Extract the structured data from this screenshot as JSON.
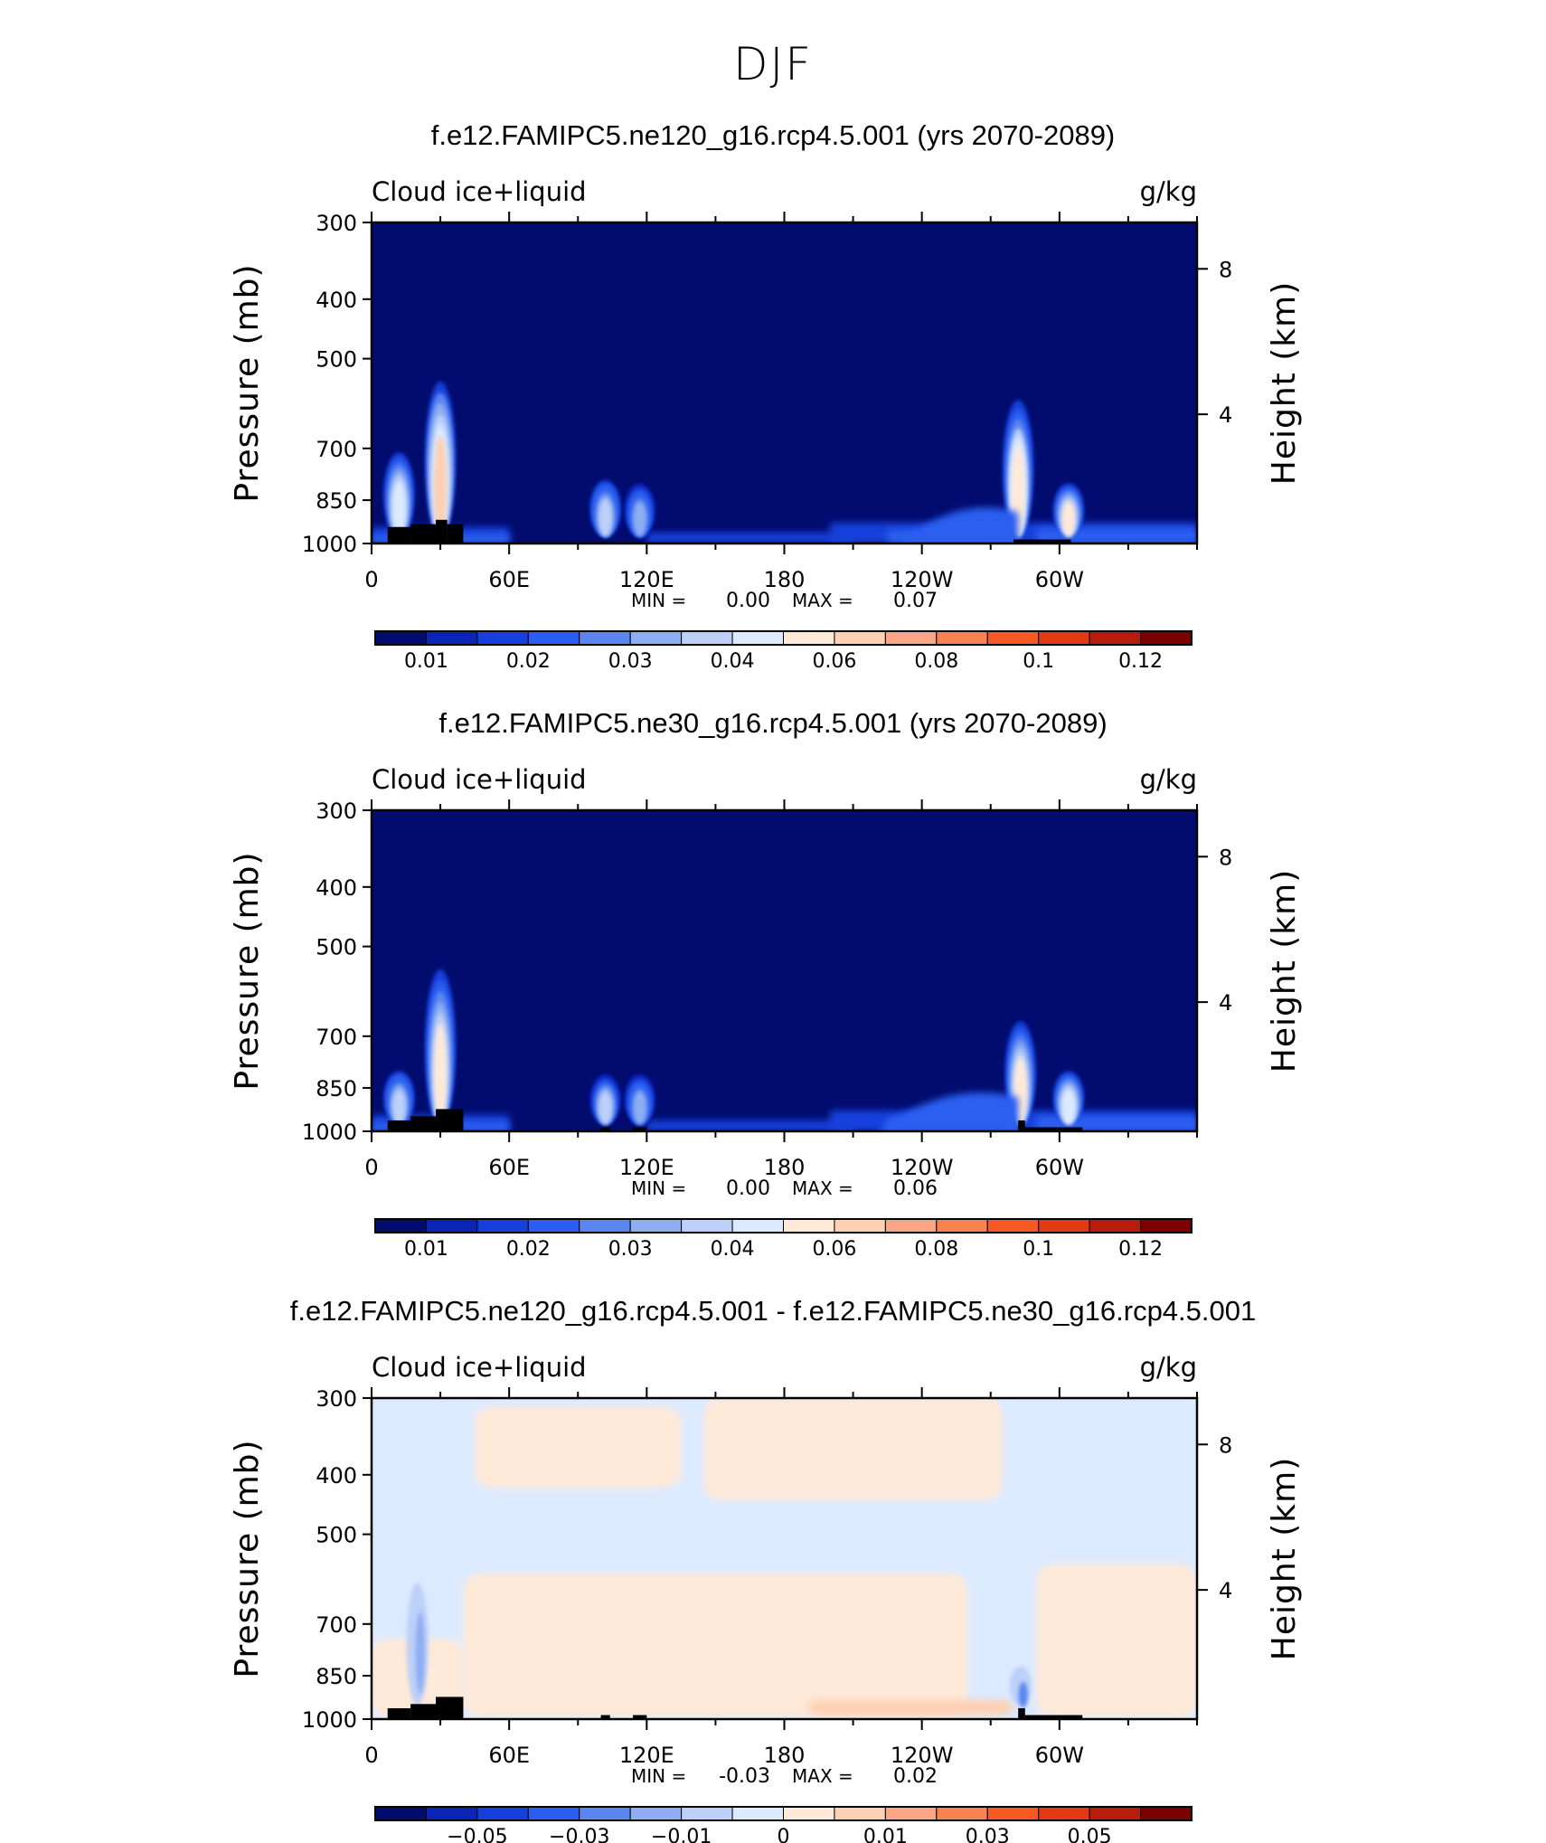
{
  "figure": {
    "title": "DJF"
  },
  "chart_data": [
    {
      "type": "contour",
      "title": "f.e12.FAMIPC5.ne120_g16.rcp4.5.001 (yrs 2070-2089)",
      "left_label": "Cloud ice+liquid",
      "units": "g/kg",
      "ylabel": "Pressure (mb)",
      "ylabel_right": "Height (km)",
      "yticks": [
        "300",
        "400",
        "500",
        "700",
        "850",
        "1000"
      ],
      "yticks_right": [
        "8",
        "4"
      ],
      "xticks": [
        "0",
        "60E",
        "120E",
        "180",
        "120W",
        "60W"
      ],
      "min_label": "MIN =",
      "min_value": "0.00",
      "max_label": "MAX =",
      "max_value": "0.07",
      "colorbar_labels": [
        "0.01",
        "0.02",
        "0.03",
        "0.04",
        "0.06",
        "0.08",
        "0.1",
        "0.12"
      ],
      "colorbar_colors": [
        "#020b6e",
        "#0a24b5",
        "#1540dc",
        "#2a5ef0",
        "#5a86f0",
        "#8eadf3",
        "#bcd0f8",
        "#dceaff",
        "#ffe9d8",
        "#fdd0b3",
        "#fba585",
        "#f7834f",
        "#f55a22",
        "#e23a12",
        "#b81c0a",
        "#7b0101"
      ],
      "features": [
        {
          "lon": 12,
          "p_top": 730,
          "intensity": 0.058,
          "kind": "plume"
        },
        {
          "lon": 30,
          "p_top": 560,
          "intensity": 0.07,
          "kind": "plume"
        },
        {
          "lon": 102,
          "p_top": 810,
          "intensity": 0.05,
          "kind": "plume"
        },
        {
          "lon": 117,
          "p_top": 820,
          "intensity": 0.04,
          "kind": "plume"
        },
        {
          "lon": 282,
          "p_top": 600,
          "intensity": 0.065,
          "kind": "plume"
        },
        {
          "lon": 304,
          "p_top": 820,
          "intensity": 0.06,
          "kind": "plume"
        },
        {
          "lon_from": 230,
          "lon_to": 282,
          "p_top": 890,
          "intensity": 0.025,
          "kind": "shelf"
        }
      ]
    },
    {
      "type": "contour",
      "title": "f.e12.FAMIPC5.ne30_g16.rcp4.5.001 (yrs 2070-2089)",
      "left_label": "Cloud ice+liquid",
      "units": "g/kg",
      "ylabel": "Pressure (mb)",
      "ylabel_right": "Height (km)",
      "yticks": [
        "300",
        "400",
        "500",
        "700",
        "850",
        "1000"
      ],
      "yticks_right": [
        "8",
        "4"
      ],
      "xticks": [
        "0",
        "60E",
        "120E",
        "180",
        "120W",
        "60W"
      ],
      "min_label": "MIN =",
      "min_value": "0.00",
      "max_label": "MAX =",
      "max_value": "0.06",
      "colorbar_labels": [
        "0.01",
        "0.02",
        "0.03",
        "0.04",
        "0.06",
        "0.08",
        "0.1",
        "0.12"
      ],
      "colorbar_colors": [
        "#020b6e",
        "#0a24b5",
        "#1540dc",
        "#2a5ef0",
        "#5a86f0",
        "#8eadf3",
        "#bcd0f8",
        "#dceaff",
        "#ffe9d8",
        "#fdd0b3",
        "#fba585",
        "#f7834f",
        "#f55a22",
        "#e23a12",
        "#b81c0a",
        "#7b0101"
      ],
      "features": [
        {
          "lon": 12,
          "p_top": 820,
          "intensity": 0.05,
          "kind": "plume"
        },
        {
          "lon": 30,
          "p_top": 560,
          "intensity": 0.06,
          "kind": "plume"
        },
        {
          "lon": 102,
          "p_top": 830,
          "intensity": 0.045,
          "kind": "plume"
        },
        {
          "lon": 117,
          "p_top": 830,
          "intensity": 0.04,
          "kind": "plume"
        },
        {
          "lon": 283,
          "p_top": 680,
          "intensity": 0.06,
          "kind": "plume"
        },
        {
          "lon": 304,
          "p_top": 820,
          "intensity": 0.055,
          "kind": "plume"
        },
        {
          "lon_from": 220,
          "lon_to": 282,
          "p_top": 880,
          "intensity": 0.02,
          "kind": "shelf"
        }
      ]
    },
    {
      "type": "contour",
      "title": "f.e12.FAMIPC5.ne120_g16.rcp4.5.001 - f.e12.FAMIPC5.ne30_g16.rcp4.5.001",
      "left_label": "Cloud ice+liquid",
      "units": "g/kg",
      "ylabel": "Pressure (mb)",
      "ylabel_right": "Height (km)",
      "yticks": [
        "300",
        "400",
        "500",
        "700",
        "850",
        "1000"
      ],
      "yticks_right": [
        "8",
        "4"
      ],
      "xticks": [
        "0",
        "60E",
        "120E",
        "180",
        "120W",
        "60W"
      ],
      "min_label": "MIN =",
      "min_value": "-0.03",
      "max_label": "MAX =",
      "max_value": "0.02",
      "colorbar_labels": [
        "−0.05",
        "−0.03",
        "−0.01",
        "0",
        "0.01",
        "0.03",
        "0.05"
      ],
      "colorbar_colors": [
        "#020b6e",
        "#0a24b5",
        "#1540dc",
        "#2a5ef0",
        "#5a86f0",
        "#8eadf3",
        "#bcd0f8",
        "#dceaff",
        "#ffe9d8",
        "#fdd0b3",
        "#fba585",
        "#f7834f",
        "#f55a22",
        "#e23a12",
        "#b81c0a",
        "#7b0101"
      ],
      "features": [
        {
          "lon_from": 0,
          "lon_to": 360,
          "p_from": 300,
          "p_to": 1000,
          "value": -0.004,
          "kind": "background"
        },
        {
          "lon_from": 45,
          "lon_to": 135,
          "p_from": 310,
          "p_to": 420,
          "value": 0.004,
          "kind": "band"
        },
        {
          "lon_from": 145,
          "lon_to": 275,
          "p_from": 300,
          "p_to": 440,
          "value": 0.004,
          "kind": "band"
        },
        {
          "lon_from": 40,
          "lon_to": 260,
          "p_from": 580,
          "p_to": 990,
          "value": 0.004,
          "kind": "band"
        },
        {
          "lon_from": 290,
          "lon_to": 360,
          "p_from": 560,
          "p_to": 990,
          "value": 0.004,
          "kind": "band"
        },
        {
          "lon_from": 0,
          "lon_to": 40,
          "p_from": 740,
          "p_to": 990,
          "value": 0.004,
          "kind": "band"
        },
        {
          "lon_from": 190,
          "lon_to": 280,
          "p_from": 930,
          "p_to": 985,
          "value": 0.012,
          "kind": "band"
        },
        {
          "lon": 20,
          "p_top": 600,
          "value": -0.02,
          "kind": "negative"
        },
        {
          "lon": 283,
          "p_top": 820,
          "value": -0.03,
          "kind": "negative"
        }
      ]
    }
  ]
}
